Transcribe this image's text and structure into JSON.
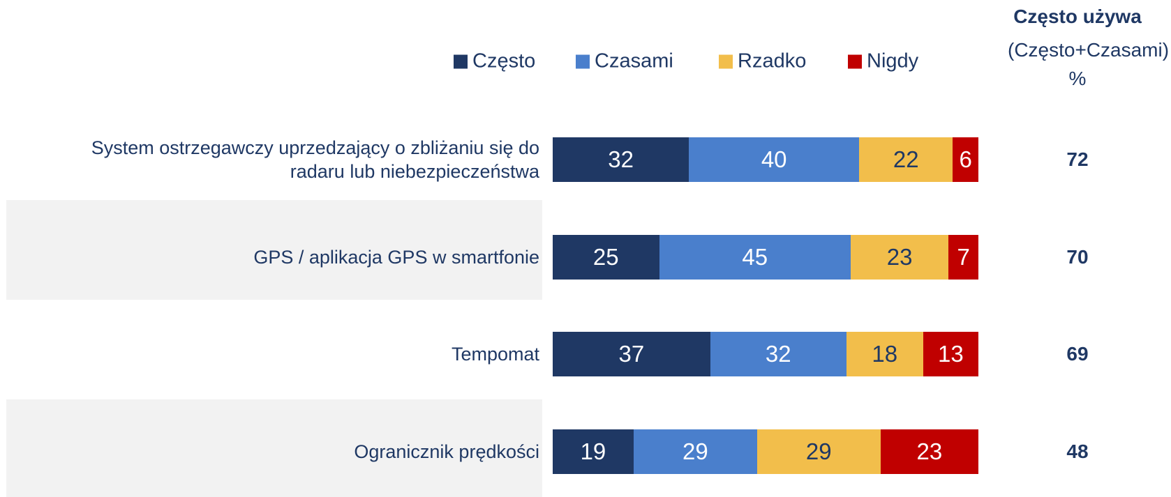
{
  "chart_data": {
    "type": "stacked_bar_horizontal",
    "categories": [
      "System ostrzegawczy uprzedzający o zbliżaniu się do radaru lub niebezpieczeństwa",
      "GPS / aplikacja GPS w smartfonie",
      "Tempomat",
      "Ogranicznik prędkości"
    ],
    "series": [
      {
        "name": "Często",
        "color": "#1f3864",
        "values": [
          32,
          25,
          37,
          19
        ]
      },
      {
        "name": "Czasami",
        "color": "#4a7fcc",
        "values": [
          40,
          45,
          32,
          29
        ]
      },
      {
        "name": "Rzadko",
        "color": "#f2be4b",
        "values": [
          22,
          23,
          18,
          29
        ]
      },
      {
        "name": "Nigdy",
        "color": "#c00000",
        "values": [
          6,
          7,
          13,
          23
        ]
      }
    ],
    "summary": {
      "title": "Często używa",
      "subtitle": "(Często+Czasami)",
      "unit": "%",
      "values": [
        72,
        70,
        69,
        48
      ]
    }
  }
}
